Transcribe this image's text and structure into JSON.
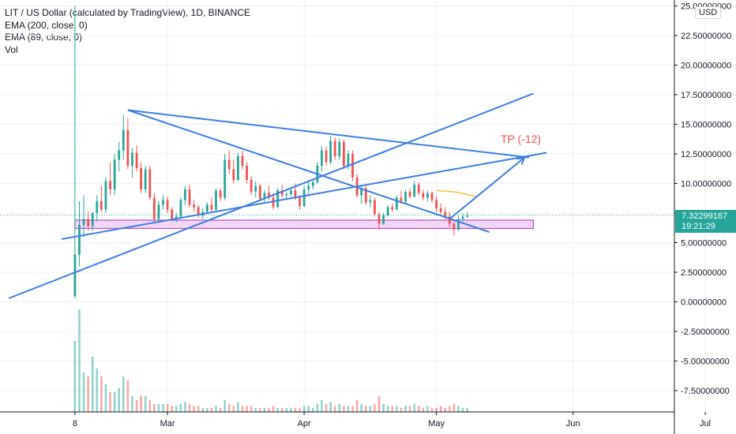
{
  "header": {
    "title": "LIT / US Dollar (calculated by TradingView), 1D, BINANCE",
    "indicators": [
      "EMA (200, close, 0)",
      "EMA (89, close, 0)",
      "Vol"
    ],
    "currency_button": "USD"
  },
  "price_tag": {
    "value": "7.32299167",
    "countdown": "19:21:29"
  },
  "annotation": {
    "text": "TP (-12)"
  },
  "colors": {
    "up": "#26a69a",
    "down": "#ef5350",
    "trendline": "#3d7ee0",
    "ema": "#f5c13a",
    "zone_fill": "#f1d6f5",
    "zone_stroke": "#b54fc6",
    "grid": "#eef0f3",
    "axis_text": "#131722"
  },
  "chart_data": {
    "type": "candlestick",
    "title": "LIT / US Dollar (calculated by TradingView), 1D, BINANCE",
    "y_axis": {
      "ticks": [
        25,
        22.5,
        20,
        17.5,
        15,
        12.5,
        10,
        7.5,
        5,
        2.5,
        0,
        -2.5,
        -5,
        -7.5
      ],
      "tick_labels": [
        "25.00000000",
        "22.50000000",
        "20.00000000",
        "17.50000000",
        "15.00000000",
        "12.50000000",
        "10.00000000",
        "7.50000000",
        "5.00000000",
        "2.50000000",
        "0.00000000",
        "-2.50000000",
        "-5.00000000",
        "-7.50000000"
      ],
      "ylim": [
        -9.3,
        25.5
      ]
    },
    "x_axis": {
      "day_range": [
        -17,
        136
      ],
      "ticks": [
        {
          "day": 0,
          "label": "8"
        },
        {
          "day": 21,
          "label": "Mar"
        },
        {
          "day": 52,
          "label": "Apr"
        },
        {
          "day": 82,
          "label": "May"
        },
        {
          "day": 113,
          "label": "Jun"
        },
        {
          "day": 143,
          "label": "Jul"
        }
      ]
    },
    "current_price": 7.32299167,
    "candles_ohlc": [
      [
        0.5,
        25.0,
        0.3,
        4.0
      ],
      [
        4.0,
        8.5,
        3.0,
        6.5
      ],
      [
        6.5,
        9.0,
        5.5,
        7.0
      ],
      [
        7.0,
        7.6,
        6.0,
        6.4
      ],
      [
        6.4,
        7.6,
        6.0,
        7.5
      ],
      [
        7.5,
        9.0,
        6.8,
        8.5
      ],
      [
        8.5,
        9.8,
        7.6,
        7.8
      ],
      [
        7.8,
        10.5,
        7.5,
        10.2
      ],
      [
        10.2,
        11.8,
        9.0,
        9.5
      ],
      [
        9.5,
        12.5,
        9.0,
        12.0
      ],
      [
        12.0,
        13.5,
        11.0,
        12.8
      ],
      [
        12.8,
        15.8,
        12.0,
        14.5
      ],
      [
        14.5,
        15.5,
        11.2,
        11.5
      ],
      [
        11.5,
        13.0,
        10.5,
        12.6
      ],
      [
        12.6,
        13.2,
        11.0,
        11.3
      ],
      [
        11.3,
        11.8,
        9.2,
        9.5
      ],
      [
        9.5,
        11.5,
        9.2,
        11.2
      ],
      [
        11.2,
        11.5,
        8.6,
        8.8
      ],
      [
        8.8,
        9.2,
        6.6,
        7.0
      ],
      [
        7.0,
        8.5,
        6.8,
        8.2
      ],
      [
        8.2,
        9.0,
        7.8,
        8.6
      ],
      [
        8.6,
        8.9,
        7.5,
        7.8
      ],
      [
        7.8,
        8.0,
        6.8,
        7.0
      ],
      [
        7.0,
        7.5,
        6.7,
        7.2
      ],
      [
        7.2,
        8.8,
        7.0,
        8.6
      ],
      [
        8.6,
        9.8,
        8.2,
        9.5
      ],
      [
        9.5,
        9.9,
        8.0,
        8.2
      ],
      [
        8.2,
        8.6,
        7.6,
        8.0
      ],
      [
        8.0,
        8.2,
        7.1,
        7.3
      ],
      [
        7.3,
        7.9,
        7.0,
        7.6
      ],
      [
        7.6,
        8.4,
        7.5,
        8.2
      ],
      [
        8.2,
        8.8,
        7.6,
        7.8
      ],
      [
        7.8,
        9.6,
        7.7,
        9.4
      ],
      [
        9.4,
        9.6,
        8.5,
        8.8
      ],
      [
        8.8,
        12.5,
        8.6,
        12.0
      ],
      [
        12.0,
        12.8,
        10.8,
        11.2
      ],
      [
        11.2,
        12.0,
        10.0,
        10.3
      ],
      [
        10.3,
        12.6,
        10.2,
        12.3
      ],
      [
        12.3,
        12.8,
        11.2,
        11.5
      ],
      [
        11.5,
        11.8,
        10.0,
        10.3
      ],
      [
        10.3,
        10.6,
        9.0,
        9.3
      ],
      [
        9.3,
        10.2,
        8.8,
        9.8
      ],
      [
        9.8,
        10.0,
        8.5,
        8.7
      ],
      [
        8.7,
        9.4,
        8.3,
        9.2
      ],
      [
        9.2,
        9.8,
        8.6,
        8.8
      ],
      [
        8.8,
        9.2,
        7.8,
        8.0
      ],
      [
        8.0,
        9.6,
        7.9,
        9.4
      ],
      [
        9.4,
        9.9,
        8.8,
        9.0
      ],
      [
        9.0,
        9.3,
        8.6,
        9.1
      ],
      [
        9.1,
        9.6,
        8.9,
        9.4
      ],
      [
        9.4,
        10.0,
        8.6,
        8.8
      ],
      [
        8.8,
        9.0,
        7.8,
        8.1
      ],
      [
        8.1,
        9.8,
        8.0,
        9.5
      ],
      [
        9.5,
        10.2,
        9.0,
        9.8
      ],
      [
        9.8,
        10.3,
        9.5,
        10.1
      ],
      [
        10.1,
        11.8,
        10.0,
        11.5
      ],
      [
        11.5,
        13.2,
        11.0,
        12.8
      ],
      [
        12.8,
        13.1,
        11.5,
        11.8
      ],
      [
        11.8,
        14.0,
        11.6,
        13.6
      ],
      [
        13.6,
        13.9,
        12.0,
        12.3
      ],
      [
        12.3,
        13.8,
        12.0,
        13.5
      ],
      [
        13.5,
        13.7,
        11.2,
        11.5
      ],
      [
        11.5,
        12.8,
        11.2,
        12.5
      ],
      [
        12.5,
        12.8,
        10.2,
        10.5
      ],
      [
        10.5,
        10.8,
        8.8,
        9.0
      ],
      [
        9.0,
        9.9,
        8.3,
        9.6
      ],
      [
        9.6,
        9.8,
        8.2,
        8.4
      ],
      [
        8.4,
        9.0,
        8.0,
        8.6
      ],
      [
        8.6,
        8.8,
        7.2,
        7.4
      ],
      [
        7.4,
        7.6,
        6.1,
        6.6
      ],
      [
        6.6,
        7.5,
        6.5,
        7.3
      ],
      [
        7.3,
        8.2,
        7.2,
        8.0
      ],
      [
        8.0,
        8.3,
        7.6,
        7.8
      ],
      [
        7.8,
        9.0,
        7.7,
        8.8
      ],
      [
        8.8,
        9.4,
        8.3,
        8.5
      ],
      [
        8.5,
        9.5,
        8.3,
        9.3
      ],
      [
        9.3,
        9.6,
        8.7,
        8.9
      ],
      [
        8.9,
        10.2,
        8.8,
        9.9
      ],
      [
        9.9,
        10.1,
        9.0,
        9.2
      ],
      [
        9.2,
        9.5,
        8.6,
        8.8
      ],
      [
        8.8,
        9.4,
        8.5,
        9.2
      ],
      [
        9.2,
        9.3,
        8.4,
        8.6
      ],
      [
        8.6,
        8.9,
        7.6,
        7.9
      ],
      [
        7.9,
        8.3,
        7.4,
        7.6
      ],
      [
        7.6,
        8.0,
        7.0,
        7.2
      ],
      [
        7.2,
        7.6,
        6.3,
        6.6
      ],
      [
        6.6,
        6.8,
        5.6,
        6.1
      ],
      [
        6.1,
        7.3,
        6.0,
        7.0
      ],
      [
        7.0,
        7.5,
        6.8,
        7.2
      ],
      [
        7.2,
        7.6,
        7.1,
        7.32
      ]
    ],
    "volume": [
      18,
      26,
      10,
      9,
      14,
      11,
      9,
      7,
      5,
      5,
      6,
      9,
      8,
      4,
      3,
      4,
      4,
      3,
      2,
      2,
      2,
      2,
      1.5,
      1.5,
      2,
      2.5,
      2,
      1.5,
      1.5,
      1,
      1,
      1,
      1.5,
      1,
      3,
      2,
      1.5,
      2.5,
      1.5,
      1.5,
      1.5,
      1,
      1,
      1,
      1,
      1.5,
      1,
      1,
      1,
      1,
      1,
      1,
      1.5,
      1.5,
      1,
      2,
      3,
      2,
      2.5,
      1.5,
      2,
      1.5,
      1.5,
      1.5,
      3,
      2,
      1.5,
      1.5,
      2,
      4,
      2,
      1.5,
      1.5,
      1.5,
      1,
      1.5,
      1.5,
      2,
      1.5,
      1,
      1.5,
      1,
      1,
      1.5,
      1,
      1.5,
      2,
      1.5,
      1,
      1
    ],
    "ema_segment": [
      [
        82,
        9.4
      ],
      [
        86,
        9.3
      ],
      [
        91,
        8.9
      ]
    ],
    "support_zone": {
      "x": [
        0,
        104
      ],
      "y": [
        6.2,
        6.9
      ]
    },
    "trendlines": [
      [
        [
          12,
          16.2
        ],
        [
          103,
          12.2
        ]
      ],
      [
        [
          -3,
          5.3
        ],
        [
          107,
          12.6
        ]
      ],
      [
        [
          -15,
          0.3
        ],
        [
          104,
          17.6
        ]
      ],
      [
        [
          12,
          16.2
        ],
        [
          94,
          5.9
        ]
      ]
    ],
    "projection_arrow": [
      [
        85,
        7.0
      ],
      [
        102,
        12.2
      ]
    ]
  }
}
